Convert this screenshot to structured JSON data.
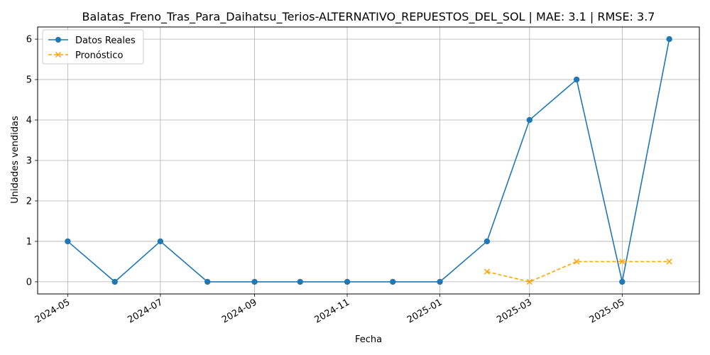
{
  "chart_data": {
    "type": "line",
    "title": "Balatas_Freno_Tras_Para_Daihatsu_Terios-ALTERNATIVO_REPUESTOS_DEL_SOL | MAE: 3.1 | RMSE: 3.7",
    "xlabel": "Fecha",
    "ylabel": "Unidades vendidas",
    "ylim": [
      -0.3,
      6.3
    ],
    "yticks": [
      "0",
      "1",
      "2",
      "3",
      "4",
      "5",
      "6"
    ],
    "xticks": [
      "2024-05",
      "2024-07",
      "2024-09",
      "2024-11",
      "2025-01",
      "2025-03",
      "2025-05"
    ],
    "xtick_dates": [
      "2024-05-01",
      "2024-07-01",
      "2024-09-01",
      "2024-11-01",
      "2025-01-01",
      "2025-03-01",
      "2025-05-01"
    ],
    "grid": true,
    "legend_position": "top-left",
    "series": [
      {
        "name": "Datos Reales",
        "color": "#1f77b4",
        "marker": "circle",
        "linestyle": "solid",
        "x": [
          "2024-05-01",
          "2024-06-01",
          "2024-07-01",
          "2024-08-01",
          "2024-09-01",
          "2024-10-01",
          "2024-11-01",
          "2024-12-01",
          "2025-01-01",
          "2025-02-01",
          "2025-03-01",
          "2025-04-01",
          "2025-05-01",
          "2025-06-01"
        ],
        "values": [
          1,
          0,
          1,
          0,
          0,
          0,
          0,
          0,
          0,
          1,
          4,
          5,
          0,
          6
        ]
      },
      {
        "name": "Pronóstico",
        "color": "#ffa500",
        "marker": "x",
        "linestyle": "dashed",
        "x": [
          "2025-02-01",
          "2025-03-01",
          "2025-04-01",
          "2025-05-01",
          "2025-06-01"
        ],
        "values": [
          0.25,
          0,
          0.5,
          0.5,
          0.5
        ]
      }
    ]
  }
}
